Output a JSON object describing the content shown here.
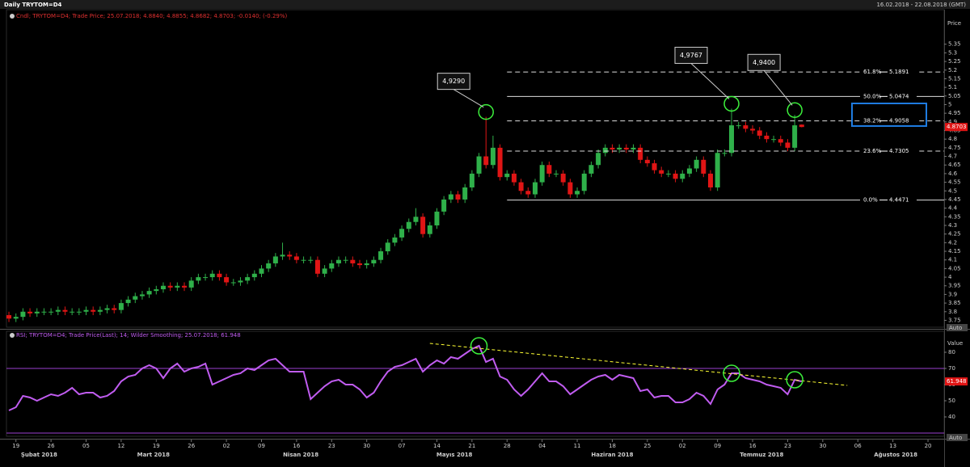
{
  "header": {
    "title": "Daily TRYTOM=D4",
    "range": "16.02.2018 - 22.08.2018 (GMT)"
  },
  "chart_data": [
    {
      "type": "candlestick",
      "legend": "Cndl; TRYTOM=D4; Trade Price; 25.07.2018; 4.8840; 4.8855; 4.8682; 4.8703; -0.0140; (-0.29%)",
      "y_axis_label": "Price",
      "scale_mode": "Auto",
      "up_color": "#2fb04a",
      "down_color": "#e01515",
      "open": [
        3.78,
        3.76,
        3.77,
        3.8,
        3.79,
        3.8,
        3.8,
        3.8,
        3.81,
        3.8,
        3.8,
        3.8,
        3.81,
        3.8,
        3.81,
        3.82,
        3.81,
        3.85,
        3.87,
        3.89,
        3.9,
        3.92,
        3.93,
        3.95,
        3.94,
        3.95,
        3.94,
        3.98,
        4.0,
        4.0,
        4.02,
        4.0,
        3.97,
        3.97,
        3.98,
        4.0,
        4.02,
        4.05,
        4.08,
        4.12,
        4.13,
        4.12,
        4.1,
        4.1,
        4.1,
        4.02,
        4.05,
        4.08,
        4.1,
        4.1,
        4.08,
        4.07,
        4.08,
        4.1,
        4.15,
        4.2,
        4.23,
        4.28,
        4.32,
        4.35,
        4.25,
        4.3,
        4.38,
        4.45,
        4.48,
        4.45,
        4.52,
        4.6,
        4.7,
        4.65,
        4.75,
        4.58,
        4.6,
        4.55,
        4.5,
        4.48,
        4.55,
        4.65,
        4.6,
        4.6,
        4.55,
        4.48,
        4.5,
        4.6,
        4.65,
        4.72,
        4.75,
        4.74,
        4.75,
        4.74,
        4.75,
        4.68,
        4.66,
        4.62,
        4.6,
        4.6,
        4.57,
        4.6,
        4.63,
        4.68,
        4.6,
        4.52,
        4.72,
        4.72,
        4.88,
        4.88,
        4.86,
        4.85,
        4.82,
        4.8,
        4.8,
        4.78,
        4.75,
        4.884
      ],
      "high": [
        3.8,
        3.79,
        3.82,
        3.82,
        3.82,
        3.82,
        3.82,
        3.83,
        3.83,
        3.82,
        3.82,
        3.83,
        3.83,
        3.83,
        3.84,
        3.84,
        3.87,
        3.89,
        3.91,
        3.92,
        3.94,
        3.95,
        3.97,
        3.97,
        3.97,
        3.97,
        4.0,
        4.02,
        4.02,
        4.04,
        4.04,
        4.02,
        3.99,
        4.0,
        4.02,
        4.04,
        4.07,
        4.1,
        4.14,
        4.2,
        4.15,
        4.14,
        4.12,
        4.12,
        4.12,
        4.07,
        4.1,
        4.12,
        4.12,
        4.12,
        4.1,
        4.1,
        4.12,
        4.17,
        4.22,
        4.25,
        4.3,
        4.34,
        4.4,
        4.37,
        4.32,
        4.4,
        4.47,
        4.5,
        4.5,
        4.54,
        4.62,
        4.72,
        4.929,
        4.82,
        4.77,
        4.62,
        4.62,
        4.57,
        4.52,
        4.57,
        4.67,
        4.67,
        4.62,
        4.62,
        4.57,
        4.52,
        4.62,
        4.67,
        4.74,
        4.77,
        4.77,
        4.77,
        4.77,
        4.77,
        4.77,
        4.7,
        4.68,
        4.64,
        4.62,
        4.62,
        4.62,
        4.65,
        4.7,
        4.7,
        4.62,
        4.74,
        4.74,
        4.9767,
        4.9,
        4.9,
        4.88,
        4.87,
        4.84,
        4.82,
        4.82,
        4.8,
        4.94,
        4.8855
      ],
      "low": [
        3.74,
        3.74,
        3.75,
        3.77,
        3.77,
        3.78,
        3.78,
        3.78,
        3.78,
        3.78,
        3.78,
        3.78,
        3.78,
        3.78,
        3.79,
        3.79,
        3.79,
        3.83,
        3.85,
        3.87,
        3.88,
        3.9,
        3.91,
        3.92,
        3.92,
        3.92,
        3.92,
        3.96,
        3.98,
        3.98,
        3.98,
        3.95,
        3.95,
        3.95,
        3.96,
        3.98,
        4.0,
        4.03,
        4.06,
        4.1,
        4.1,
        4.08,
        4.08,
        4.08,
        4.0,
        4.0,
        4.03,
        4.06,
        4.08,
        4.06,
        4.05,
        4.05,
        4.06,
        4.08,
        4.13,
        4.18,
        4.21,
        4.26,
        4.3,
        4.23,
        4.23,
        4.28,
        4.36,
        4.43,
        4.43,
        4.43,
        4.5,
        4.58,
        4.63,
        4.63,
        4.56,
        4.56,
        4.53,
        4.48,
        4.46,
        4.46,
        4.53,
        4.58,
        4.58,
        4.53,
        4.46,
        4.46,
        4.48,
        4.58,
        4.63,
        4.7,
        4.72,
        4.72,
        4.72,
        4.72,
        4.66,
        4.64,
        4.6,
        4.58,
        4.58,
        4.55,
        4.55,
        4.58,
        4.61,
        4.58,
        4.5,
        4.5,
        4.7,
        4.7,
        4.86,
        4.84,
        4.83,
        4.8,
        4.78,
        4.78,
        4.76,
        4.73,
        4.73,
        4.8682
      ],
      "close": [
        3.76,
        3.77,
        3.8,
        3.79,
        3.8,
        3.8,
        3.8,
        3.81,
        3.8,
        3.8,
        3.8,
        3.81,
        3.8,
        3.81,
        3.82,
        3.81,
        3.85,
        3.87,
        3.89,
        3.9,
        3.92,
        3.93,
        3.95,
        3.94,
        3.95,
        3.94,
        3.98,
        4.0,
        4.0,
        4.02,
        4.0,
        3.97,
        3.97,
        3.98,
        4.0,
        4.02,
        4.05,
        4.08,
        4.12,
        4.13,
        4.12,
        4.1,
        4.1,
        4.1,
        4.02,
        4.05,
        4.08,
        4.1,
        4.1,
        4.08,
        4.07,
        4.08,
        4.1,
        4.15,
        4.2,
        4.23,
        4.28,
        4.32,
        4.35,
        4.25,
        4.3,
        4.38,
        4.45,
        4.48,
        4.45,
        4.52,
        4.6,
        4.7,
        4.65,
        4.75,
        4.58,
        4.6,
        4.55,
        4.5,
        4.48,
        4.55,
        4.65,
        4.6,
        4.6,
        4.55,
        4.48,
        4.5,
        4.6,
        4.65,
        4.72,
        4.75,
        4.74,
        4.75,
        4.74,
        4.75,
        4.68,
        4.66,
        4.62,
        4.6,
        4.6,
        4.57,
        4.6,
        4.63,
        4.68,
        4.6,
        4.52,
        4.72,
        4.72,
        4.88,
        4.88,
        4.86,
        4.85,
        4.82,
        4.8,
        4.8,
        4.78,
        4.75,
        4.88,
        4.8703
      ],
      "xlim": [
        -0.35,
        133.3
      ],
      "xticks": [
        {
          "value": 1,
          "label": "19"
        },
        {
          "value": 6,
          "label": "26"
        },
        {
          "value": 11,
          "label": "05"
        },
        {
          "value": 16,
          "label": "12"
        },
        {
          "value": 21,
          "label": "19"
        },
        {
          "value": 26,
          "label": "26"
        },
        {
          "value": 31,
          "label": "02"
        },
        {
          "value": 36,
          "label": "09"
        },
        {
          "value": 41,
          "label": "16"
        },
        {
          "value": 46,
          "label": "23"
        },
        {
          "value": 51,
          "label": "30"
        },
        {
          "value": 56,
          "label": "07"
        },
        {
          "value": 61,
          "label": "14"
        },
        {
          "value": 66,
          "label": "21"
        },
        {
          "value": 71,
          "label": "28"
        },
        {
          "value": 76,
          "label": "04"
        },
        {
          "value": 81,
          "label": "11"
        },
        {
          "value": 86,
          "label": "18"
        },
        {
          "value": 91,
          "label": "25"
        },
        {
          "value": 96,
          "label": "02"
        },
        {
          "value": 101,
          "label": "09"
        },
        {
          "value": 106,
          "label": "16"
        },
        {
          "value": 111,
          "label": "23"
        },
        {
          "value": 116,
          "label": "30"
        },
        {
          "value": 121,
          "label": "06"
        },
        {
          "value": 126,
          "label": "13"
        },
        {
          "value": 131,
          "label": "20"
        }
      ],
      "month_labels": [
        {
          "value": 4.3,
          "label": "Şubat 2018"
        },
        {
          "value": 20.6,
          "label": "Mart 2018"
        },
        {
          "value": 41.6,
          "label": "Nisan 2018"
        },
        {
          "value": 63.5,
          "label": "Mayıs 2018"
        },
        {
          "value": 86,
          "label": "Haziran 2018"
        },
        {
          "value": 107.3,
          "label": "Temmuz 2018"
        },
        {
          "value": 126.4,
          "label": "Ağustos 2018"
        }
      ],
      "ylim": [
        3.71,
        5.55
      ],
      "yticks": [
        3.75,
        3.8,
        3.85,
        3.9,
        3.95,
        4,
        4.05,
        4.1,
        4.15,
        4.2,
        4.25,
        4.3,
        4.35,
        4.4,
        4.45,
        4.5,
        4.55,
        4.6,
        4.65,
        4.7,
        4.75,
        4.8,
        4.85,
        4.9,
        4.95,
        5,
        5.05,
        5.1,
        5.15,
        5.2,
        5.25,
        5.3,
        5.35
      ],
      "fibonacci": {
        "start": 71,
        "levels": [
          {
            "label": "61.8%",
            "value": 5.1891,
            "style": "dashed"
          },
          {
            "label": "50.0%",
            "value": 5.0474,
            "style": "solid"
          },
          {
            "label": "38.2%",
            "value": 4.9058,
            "style": "dashed"
          },
          {
            "label": "23.6%",
            "value": 4.7305,
            "style": "dashed"
          },
          {
            "label": "0.0%",
            "value": 4.4471,
            "style": "solid"
          }
        ]
      },
      "annotations": [
        {
          "x": 68,
          "value": 4.929,
          "label": "4,9290"
        },
        {
          "x": 103,
          "value": 4.9767,
          "label": "4,9767"
        },
        {
          "x": 112,
          "value": 4.94,
          "label": "4,9400"
        }
      ]
    },
    {
      "type": "line",
      "legend": "RSI; TRYTOM=D4; Trade Price(Last); 14; Wilder Smoothing; 25.07.2018; 61.948",
      "y_axis_label": "Value",
      "scale_mode": "Auto",
      "color": "#c05cf0",
      "values": [
        44,
        46,
        53,
        52,
        50,
        52,
        54,
        53,
        55,
        58,
        54,
        55,
        55,
        52,
        53,
        56,
        62,
        65,
        66,
        70,
        72,
        70,
        64,
        70,
        73,
        68,
        70,
        71,
        73,
        60,
        62,
        64,
        66,
        67,
        70,
        69,
        72,
        75,
        76,
        72,
        68,
        68,
        68,
        51,
        55,
        59,
        62,
        63,
        60,
        60,
        57,
        52,
        55,
        62,
        68,
        71,
        72,
        74,
        76,
        68,
        72,
        75,
        73,
        77,
        76,
        79,
        82,
        84,
        74,
        76,
        65,
        63,
        57,
        53,
        57,
        62,
        67,
        62,
        62,
        59,
        54,
        57,
        60,
        63,
        65,
        66,
        63,
        66,
        65,
        64,
        56,
        57,
        52,
        53,
        53,
        49,
        49,
        51,
        55,
        53,
        48,
        57,
        60,
        67,
        67,
        64,
        63,
        62,
        60,
        59,
        58,
        54,
        63,
        61.948
      ],
      "ylim": [
        28,
        93
      ],
      "yticks": [
        40,
        50,
        60,
        70,
        80
      ],
      "levels": [
        70,
        30
      ],
      "trendline": {
        "x": [
          60,
          119.5
        ],
        "values": [
          85.5,
          59.5
        ],
        "color": "#ffff33"
      },
      "highlights": [
        67,
        103,
        112
      ]
    }
  ]
}
